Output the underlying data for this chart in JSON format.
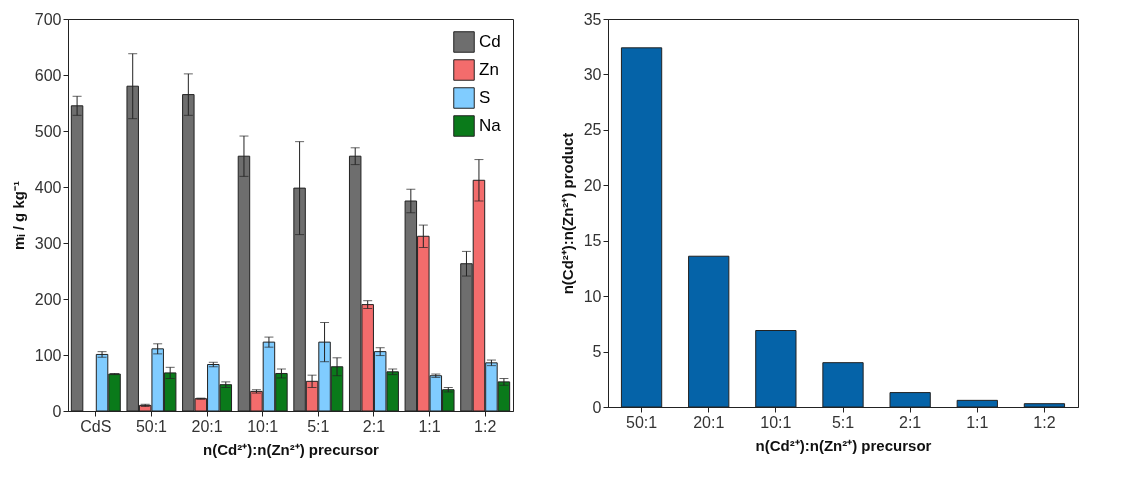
{
  "chart_data": [
    {
      "type": "bar",
      "xlabel": "n(Cd²⁺):n(Zn²⁺) precursor",
      "ylabel": "mᵢ / g kg⁻¹",
      "categories": [
        "CdS",
        "50:1",
        "20:1",
        "10:1",
        "5:1",
        "2:1",
        "1:1",
        "1:2"
      ],
      "series": [
        {
          "name": "Cd",
          "color": "#6e6e6e",
          "values": [
            545,
            580,
            565,
            455,
            398,
            455,
            375,
            263
          ],
          "errors": [
            17,
            58,
            37,
            36,
            83,
            15,
            21,
            22
          ]
        },
        {
          "name": "Zn",
          "color": "#f36c6c",
          "values": [
            null,
            10,
            22,
            35,
            53,
            190,
            312,
            412
          ],
          "errors": [
            null,
            2,
            1,
            3,
            11,
            7,
            20,
            37
          ]
        },
        {
          "name": "S",
          "color": "#80ccff",
          "values": [
            101,
            111,
            83,
            123,
            123,
            106,
            63,
            86
          ],
          "errors": [
            5,
            9,
            4,
            9,
            35,
            7,
            3,
            5
          ]
        },
        {
          "name": "Na",
          "color": "#0a7a1a",
          "values": [
            66,
            68,
            47,
            67,
            79,
            70,
            38,
            52
          ],
          "errors": [
            1,
            10,
            5,
            8,
            16,
            5,
            4,
            6
          ]
        }
      ],
      "ylim": [
        0,
        700
      ],
      "yticks": [
        0,
        100,
        200,
        300,
        400,
        500,
        600,
        700
      ],
      "legend": "top right"
    },
    {
      "type": "bar",
      "xlabel": "n(Cd²⁺):n(Zn²⁺) precursor",
      "ylabel": "n(Cd²⁺):n(Zn²⁺) product",
      "categories": [
        "50:1",
        "20:1",
        "10:1",
        "5:1",
        "2:1",
        "1:1",
        "1:2"
      ],
      "values": [
        32.4,
        13.6,
        6.9,
        4.0,
        1.3,
        0.6,
        0.3
      ],
      "color": "#0563a8",
      "ylim": [
        0,
        35
      ],
      "yticks": [
        0,
        5,
        10,
        15,
        20,
        25,
        30,
        35
      ]
    }
  ]
}
